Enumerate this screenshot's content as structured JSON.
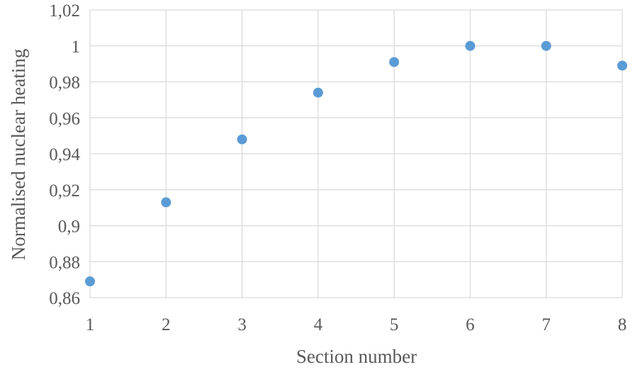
{
  "chart_data": {
    "type": "scatter",
    "xlabel": "Section number",
    "ylabel": "Normalised nuclear heating",
    "xlim": [
      1,
      8
    ],
    "ylim": [
      0.86,
      1.02
    ],
    "x_ticks": [
      1,
      2,
      3,
      4,
      5,
      6,
      7,
      8
    ],
    "x_tick_labels": [
      "1",
      "2",
      "3",
      "4",
      "5",
      "6",
      "7",
      "8"
    ],
    "y_ticks": [
      0.86,
      0.88,
      0.9,
      0.92,
      0.94,
      0.96,
      0.98,
      1.0,
      1.02
    ],
    "y_tick_labels": [
      "0,86",
      "0,88",
      "0,9",
      "0,92",
      "0,94",
      "0,96",
      "0,98",
      "1",
      "1,02"
    ],
    "grid": true,
    "marker_color": "#5b9bd5",
    "series": [
      {
        "x": [
          1,
          2,
          3,
          4,
          5,
          6,
          7,
          8
        ],
        "y": [
          0.869,
          0.913,
          0.948,
          0.974,
          0.991,
          1.0,
          1.0,
          0.989
        ]
      }
    ]
  }
}
